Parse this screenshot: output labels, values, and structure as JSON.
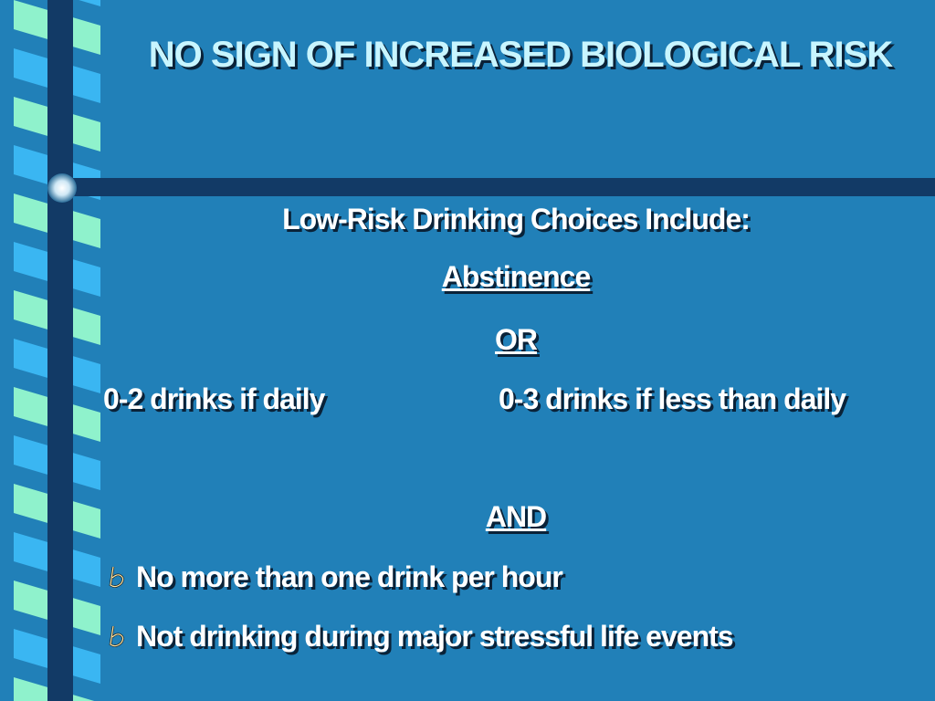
{
  "title": "NO SIGN OF INCREASED BIOLOGICAL RISK",
  "body": {
    "heading": "Low-Risk Drinking Choices Include:",
    "option_1": "Abstinence",
    "connector_1": "OR",
    "limit_daily": "0-2 drinks if daily",
    "limit_less_than_daily": "0-3 drinks if less than daily",
    "connector_2": "AND",
    "bullets": [
      "No more than one drink per hour",
      "Not drinking during major stressful life events"
    ]
  }
}
